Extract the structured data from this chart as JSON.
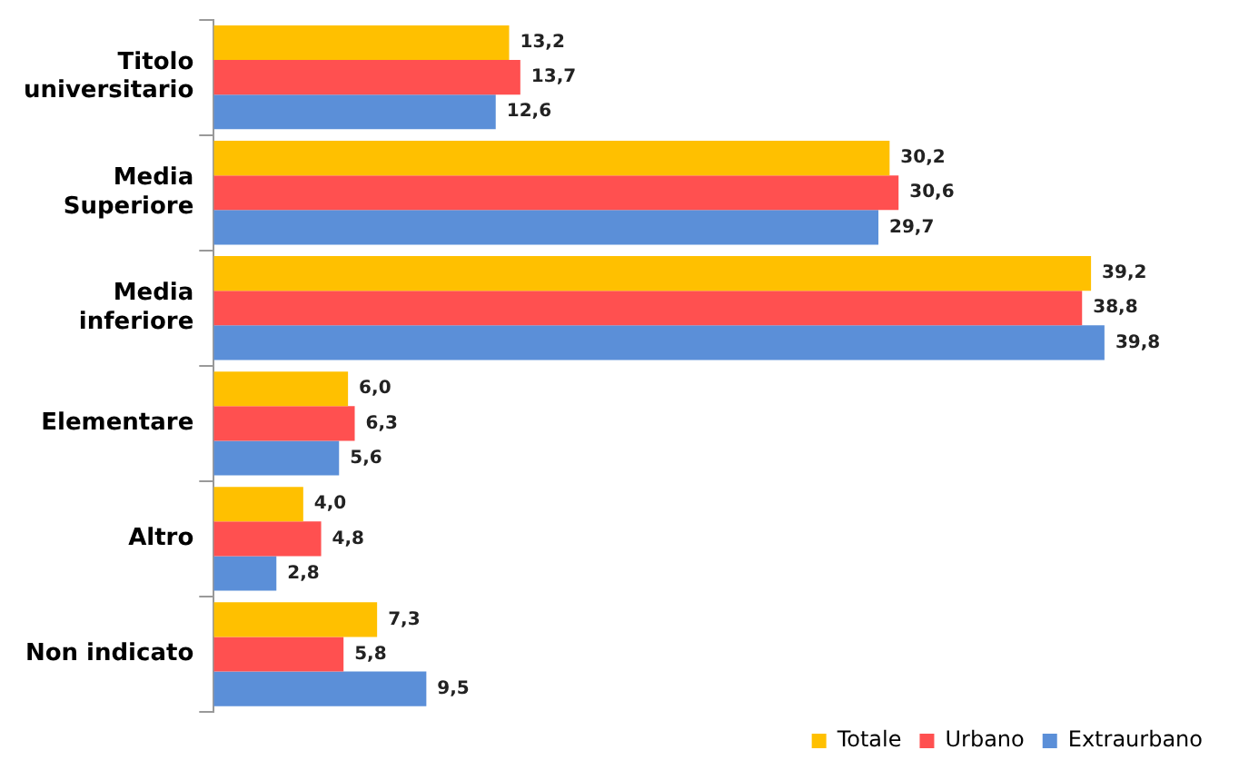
{
  "chart_data": {
    "type": "bar",
    "orientation": "horizontal",
    "categories": [
      "Titolo universitario",
      "Media Superiore",
      "Media inferiore",
      "Elementare",
      "Altro",
      "Non indicato"
    ],
    "series": [
      {
        "name": "Totale",
        "color": "#ffc000",
        "values": [
          13.2,
          30.2,
          39.2,
          6.0,
          4.0,
          7.3
        ],
        "value_labels": [
          "13,2",
          "30,2",
          "39,2",
          "6,0",
          "4,0",
          "7,3"
        ]
      },
      {
        "name": "Urbano",
        "color": "#ff5050",
        "values": [
          13.7,
          30.6,
          38.8,
          6.3,
          4.8,
          5.8
        ],
        "value_labels": [
          "13,7",
          "30,6",
          "38,8",
          "6,3",
          "4,8",
          "5,8"
        ]
      },
      {
        "name": "Extraurbano",
        "color": "#5b8fd8",
        "values": [
          12.6,
          29.7,
          39.8,
          5.6,
          2.8,
          9.5
        ],
        "value_labels": [
          "12,6",
          "29,7",
          "39,8",
          "5,6",
          "2,8",
          "9,5"
        ]
      }
    ],
    "legend": "bottom right"
  }
}
